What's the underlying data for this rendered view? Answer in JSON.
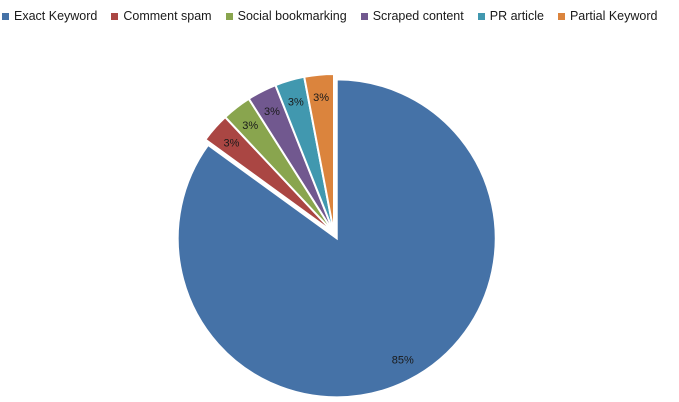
{
  "chart_data": {
    "type": "pie",
    "title": "",
    "legend_position": "top",
    "series": [
      {
        "name": "Exact Keyword",
        "value": 85,
        "label": "85%",
        "color": "#4572A7"
      },
      {
        "name": "Comment spam",
        "value": 3,
        "label": "3%",
        "color": "#AA4643"
      },
      {
        "name": "Social bookmarking",
        "value": 3,
        "label": "3%",
        "color": "#89A54E"
      },
      {
        "name": "Scraped content",
        "value": 3,
        "label": "3%",
        "color": "#71588F"
      },
      {
        "name": "PR article",
        "value": 3,
        "label": "3%",
        "color": "#4198AF"
      },
      {
        "name": "Partial Keyword",
        "value": 3,
        "label": "3%",
        "color": "#DB843D"
      }
    ],
    "exploded_slice": "Exact Keyword"
  }
}
